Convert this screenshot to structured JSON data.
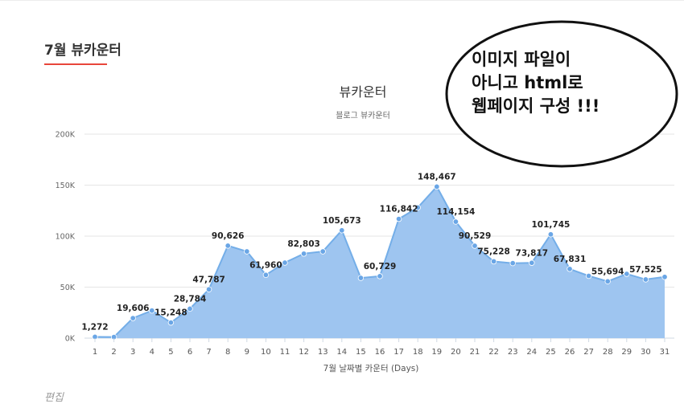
{
  "page": {
    "section_title": "7월 뷰카운터",
    "footer_edit": "편집"
  },
  "callout": {
    "text": "이미지 파일이\n아니고 html로\n웹페이지 구성 !!!"
  },
  "colors": {
    "accent_underline": "#e8463a",
    "area_fill": "#9ec5f0",
    "line": "#74aee8",
    "point": "#6aa6e6"
  },
  "chart_data": {
    "type": "area",
    "title": "뷰카운터",
    "subtitle": "블로그 뷰카운터",
    "xlabel": "7월 날짜별 카운터 (Days)",
    "ylabel": "",
    "ylim": [
      0,
      200000
    ],
    "yticks": [
      0,
      50000,
      100000,
      150000,
      200000
    ],
    "ytick_labels": [
      "0K",
      "50K",
      "100K",
      "150K",
      "200K"
    ],
    "grid": true,
    "legend": "none",
    "categories": [
      "1",
      "2",
      "3",
      "4",
      "5",
      "6",
      "7",
      "8",
      "9",
      "10",
      "11",
      "12",
      "13",
      "14",
      "15",
      "16",
      "17",
      "18",
      "19",
      "20",
      "21",
      "22",
      "23",
      "24",
      "25",
      "26",
      "27",
      "28",
      "29",
      "30",
      "31"
    ],
    "series": [
      {
        "name": "뷰카운터",
        "values": [
          1272,
          1100,
          19606,
          27000,
          15248,
          28784,
          47787,
          90626,
          85000,
          61960,
          74000,
          82803,
          85000,
          105673,
          59000,
          60729,
          116842,
          128000,
          148467,
          114154,
          90529,
          75228,
          73500,
          73817,
          101745,
          67831,
          61000,
          55694,
          63000,
          57525,
          60000
        ]
      }
    ],
    "data_labels": [
      {
        "index": 0,
        "text": "1,272"
      },
      {
        "index": 2,
        "text": "19,606"
      },
      {
        "index": 4,
        "text": "15,248"
      },
      {
        "index": 5,
        "text": "28,784"
      },
      {
        "index": 6,
        "text": "47,787"
      },
      {
        "index": 7,
        "text": "90,626"
      },
      {
        "index": 9,
        "text": "61,960"
      },
      {
        "index": 11,
        "text": "82,803"
      },
      {
        "index": 13,
        "text": "105,673"
      },
      {
        "index": 15,
        "text": "60,729"
      },
      {
        "index": 16,
        "text": "116,842"
      },
      {
        "index": 18,
        "text": "148,467"
      },
      {
        "index": 19,
        "text": "114,154"
      },
      {
        "index": 20,
        "text": "90,529"
      },
      {
        "index": 21,
        "text": "75,228"
      },
      {
        "index": 23,
        "text": "73,817"
      },
      {
        "index": 24,
        "text": "101,745"
      },
      {
        "index": 25,
        "text": "67,831"
      },
      {
        "index": 27,
        "text": "55,694"
      },
      {
        "index": 29,
        "text": "57,525"
      }
    ]
  }
}
